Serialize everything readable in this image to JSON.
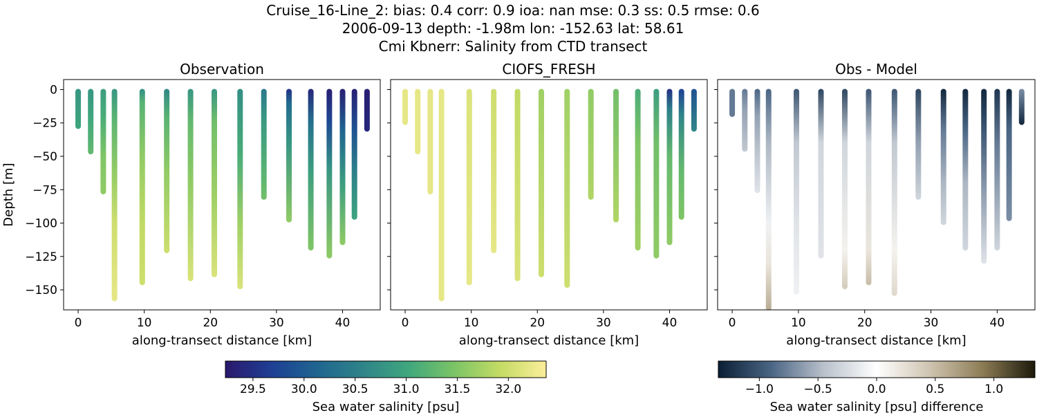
{
  "suptitle": {
    "line1": "Cruise_16-Line_2: bias: 0.4  corr: 0.9  ioa: nan  mse: 0.3  ss: 0.5  rmse: 0.6",
    "line2": "2006-09-13 depth: -1.98m lon: -152.63 lat: 58.61",
    "line3": "Cmi Kbnerr: Salinity from CTD transect"
  },
  "chart_data": [
    {
      "type": "scatter",
      "title": "Observation",
      "xlabel": "along-transect distance [km]",
      "ylabel": "Depth [m]",
      "xlim": [
        -2.2,
        45.7
      ],
      "ylim": [
        -165,
        7.5
      ],
      "xticks": [
        0,
        10,
        20,
        30,
        40
      ],
      "yticks": [
        0,
        -25,
        -50,
        -75,
        -100,
        -125,
        -150
      ],
      "x_tick_labels": [
        "0",
        "10",
        "20",
        "30",
        "40"
      ],
      "y_tick_labels": [
        "0",
        "−25",
        "−50",
        "−75",
        "−100",
        "−125",
        "−150"
      ],
      "colorbar": "salinity",
      "casts": [
        {
          "x": 0.0,
          "bottom": -29,
          "profile": [
            [
              0,
              30.8
            ],
            [
              -29,
              31.0
            ]
          ]
        },
        {
          "x": 1.9,
          "bottom": -48,
          "profile": [
            [
              0,
              30.8
            ],
            [
              -20,
              31.0
            ],
            [
              -48,
              31.3
            ]
          ]
        },
        {
          "x": 3.8,
          "bottom": -78,
          "profile": [
            [
              0,
              30.9
            ],
            [
              -20,
              31.1
            ],
            [
              -50,
              31.5
            ],
            [
              -78,
              31.6
            ]
          ]
        },
        {
          "x": 5.5,
          "bottom": -158,
          "profile": [
            [
              0,
              30.8
            ],
            [
              -20,
              31.2
            ],
            [
              -60,
              31.6
            ],
            [
              -100,
              32.0
            ],
            [
              -158,
              32.2
            ]
          ]
        },
        {
          "x": 9.7,
          "bottom": -146,
          "profile": [
            [
              0,
              30.7
            ],
            [
              -10,
              31.2
            ],
            [
              -50,
              31.6
            ],
            [
              -100,
              31.9
            ],
            [
              -146,
              32.0
            ]
          ]
        },
        {
          "x": 13.4,
          "bottom": -122,
          "profile": [
            [
              0,
              30.6
            ],
            [
              -20,
              31.2
            ],
            [
              -60,
              31.6
            ],
            [
              -122,
              32.0
            ]
          ]
        },
        {
          "x": 17.0,
          "bottom": -143,
          "profile": [
            [
              0,
              30.8
            ],
            [
              -25,
              31.3
            ],
            [
              -70,
              31.6
            ],
            [
              -143,
              32.1
            ]
          ]
        },
        {
          "x": 20.6,
          "bottom": -140,
          "profile": [
            [
              0,
              30.8
            ],
            [
              -25,
              31.4
            ],
            [
              -80,
              31.7
            ],
            [
              -140,
              32.1
            ]
          ]
        },
        {
          "x": 24.5,
          "bottom": -149,
          "profile": [
            [
              0,
              30.7
            ],
            [
              -50,
              31.1
            ],
            [
              -100,
              31.7
            ],
            [
              -149,
              32.1
            ]
          ]
        },
        {
          "x": 28.1,
          "bottom": -82,
          "profile": [
            [
              0,
              30.4
            ],
            [
              -20,
              30.8
            ],
            [
              -60,
              31.2
            ],
            [
              -82,
              31.4
            ]
          ]
        },
        {
          "x": 31.9,
          "bottom": -99,
          "profile": [
            [
              0,
              29.5
            ],
            [
              -10,
              30.2
            ],
            [
              -40,
              30.8
            ],
            [
              -99,
              31.6
            ]
          ]
        },
        {
          "x": 35.2,
          "bottom": -120,
          "profile": [
            [
              0,
              29.4
            ],
            [
              -25,
              30.3
            ],
            [
              -60,
              30.9
            ],
            [
              -120,
              31.5
            ]
          ]
        },
        {
          "x": 38.0,
          "bottom": -126,
          "profile": [
            [
              0,
              29.3
            ],
            [
              -25,
              29.8
            ],
            [
              -60,
              30.8
            ],
            [
              -126,
              31.6
            ]
          ]
        },
        {
          "x": 40.0,
          "bottom": -116,
          "profile": [
            [
              0,
              29.3
            ],
            [
              -30,
              30.1
            ],
            [
              -70,
              30.9
            ],
            [
              -116,
              31.6
            ]
          ]
        },
        {
          "x": 41.8,
          "bottom": -97,
          "profile": [
            [
              0,
              29.3
            ],
            [
              -30,
              29.9
            ],
            [
              -60,
              30.5
            ],
            [
              -97,
              31.0
            ]
          ]
        },
        {
          "x": 43.7,
          "bottom": -31,
          "profile": [
            [
              0,
              29.3
            ],
            [
              -31,
              29.4
            ]
          ]
        }
      ]
    },
    {
      "type": "scatter",
      "title": "CIOFS_FRESH",
      "xlabel": "along-transect distance [km]",
      "xlim": [
        -2.2,
        45.7
      ],
      "ylim": [
        -165,
        7.5
      ],
      "xticks": [
        0,
        10,
        20,
        30,
        40
      ],
      "yticks": [
        0,
        -25,
        -50,
        -75,
        -100,
        -125,
        -150
      ],
      "x_tick_labels": [
        "0",
        "10",
        "20",
        "30",
        "40"
      ],
      "colorbar": "salinity",
      "casts": [
        {
          "x": 0.0,
          "bottom": -26,
          "profile": [
            [
              0,
              32.2
            ],
            [
              -26,
              32.2
            ]
          ]
        },
        {
          "x": 1.9,
          "bottom": -48,
          "profile": [
            [
              0,
              32.2
            ],
            [
              -48,
              32.2
            ]
          ]
        },
        {
          "x": 3.8,
          "bottom": -78,
          "profile": [
            [
              0,
              32.2
            ],
            [
              -78,
              32.2
            ]
          ]
        },
        {
          "x": 5.5,
          "bottom": -158,
          "profile": [
            [
              0,
              32.2
            ],
            [
              -158,
              32.2
            ]
          ]
        },
        {
          "x": 9.7,
          "bottom": -146,
          "profile": [
            [
              0,
              32.1
            ],
            [
              -146,
              32.2
            ]
          ]
        },
        {
          "x": 13.4,
          "bottom": -122,
          "profile": [
            [
              0,
              32.0
            ],
            [
              -122,
              32.2
            ]
          ]
        },
        {
          "x": 17.0,
          "bottom": -143,
          "profile": [
            [
              0,
              31.9
            ],
            [
              -143,
              32.1
            ]
          ]
        },
        {
          "x": 20.6,
          "bottom": -140,
          "profile": [
            [
              0,
              31.7
            ],
            [
              -140,
              32.0
            ]
          ]
        },
        {
          "x": 24.5,
          "bottom": -148,
          "profile": [
            [
              0,
              31.7
            ],
            [
              -148,
              32.0
            ]
          ]
        },
        {
          "x": 28.1,
          "bottom": -82,
          "profile": [
            [
              0,
              31.6
            ],
            [
              -82,
              31.8
            ]
          ]
        },
        {
          "x": 31.9,
          "bottom": -99,
          "profile": [
            [
              0,
              31.4
            ],
            [
              -99,
              31.8
            ]
          ]
        },
        {
          "x": 35.2,
          "bottom": -120,
          "profile": [
            [
              0,
              31.1
            ],
            [
              -40,
              31.5
            ],
            [
              -120,
              31.7
            ]
          ]
        },
        {
          "x": 38.0,
          "bottom": -126,
          "profile": [
            [
              0,
              30.9
            ],
            [
              -40,
              31.4
            ],
            [
              -126,
              31.6
            ]
          ]
        },
        {
          "x": 40.0,
          "bottom": -116,
          "profile": [
            [
              0,
              29.5
            ],
            [
              -15,
              30.5
            ],
            [
              -50,
              31.3
            ],
            [
              -116,
              31.6
            ]
          ]
        },
        {
          "x": 41.8,
          "bottom": -97,
          "profile": [
            [
              0,
              29.7
            ],
            [
              -20,
              30.6
            ],
            [
              -60,
              31.3
            ],
            [
              -97,
              31.5
            ]
          ]
        },
        {
          "x": 43.7,
          "bottom": -31,
          "profile": [
            [
              0,
              29.9
            ],
            [
              -31,
              30.6
            ]
          ]
        }
      ]
    },
    {
      "type": "scatter",
      "title": "Obs - Model",
      "xlabel": "along-transect distance [km]",
      "xlim": [
        -2.2,
        45.7
      ],
      "ylim": [
        -165,
        7.5
      ],
      "xticks": [
        0,
        10,
        20,
        30,
        40
      ],
      "yticks": [
        0,
        -25,
        -50,
        -75,
        -100,
        -125,
        -150
      ],
      "x_tick_labels": [
        "0",
        "10",
        "20",
        "30",
        "40"
      ],
      "colorbar": "difference",
      "casts": [
        {
          "x": 0.0,
          "bottom": -20,
          "profile": [
            [
              0,
              -0.8
            ],
            [
              -20,
              -0.8
            ]
          ]
        },
        {
          "x": 1.9,
          "bottom": -46,
          "profile": [
            [
              0,
              -0.8
            ],
            [
              -15,
              -0.6
            ],
            [
              -46,
              -0.4
            ]
          ]
        },
        {
          "x": 3.8,
          "bottom": -77,
          "profile": [
            [
              0,
              -0.9
            ],
            [
              -20,
              -0.6
            ],
            [
              -50,
              -0.4
            ],
            [
              -77,
              -0.2
            ]
          ]
        },
        {
          "x": 5.5,
          "bottom": -165,
          "profile": [
            [
              0,
              -0.9
            ],
            [
              -40,
              -0.5
            ],
            [
              -100,
              -0.1
            ],
            [
              -130,
              0.2
            ],
            [
              -165,
              0.6
            ]
          ]
        },
        {
          "x": 9.7,
          "bottom": -153,
          "profile": [
            [
              0,
              -1.0
            ],
            [
              -40,
              -0.4
            ],
            [
              -100,
              -0.2
            ],
            [
              -153,
              -0.1
            ]
          ]
        },
        {
          "x": 13.4,
          "bottom": -126,
          "profile": [
            [
              0,
              -1.1
            ],
            [
              -40,
              -0.3
            ],
            [
              -126,
              -0.2
            ]
          ]
        },
        {
          "x": 17.0,
          "bottom": -149,
          "profile": [
            [
              0,
              -1.1
            ],
            [
              -40,
              -0.3
            ],
            [
              -120,
              0.1
            ],
            [
              -149,
              0.4
            ]
          ]
        },
        {
          "x": 20.6,
          "bottom": -146,
          "profile": [
            [
              0,
              -1.0
            ],
            [
              -40,
              -0.3
            ],
            [
              -120,
              0.2
            ],
            [
              -146,
              0.5
            ]
          ]
        },
        {
          "x": 24.5,
          "bottom": -154,
          "profile": [
            [
              0,
              -1.0
            ],
            [
              -40,
              -0.4
            ],
            [
              -120,
              0.1
            ],
            [
              -154,
              0.3
            ]
          ]
        },
        {
          "x": 28.1,
          "bottom": -82,
          "profile": [
            [
              0,
              -1.1
            ],
            [
              -40,
              -0.6
            ],
            [
              -82,
              -0.3
            ]
          ]
        },
        {
          "x": 31.9,
          "bottom": -101,
          "profile": [
            [
              0,
              -1.3
            ],
            [
              -30,
              -0.8
            ],
            [
              -70,
              -0.5
            ],
            [
              -101,
              -0.3
            ]
          ]
        },
        {
          "x": 35.2,
          "bottom": -120,
          "profile": [
            [
              0,
              -1.3
            ],
            [
              -30,
              -0.9
            ],
            [
              -70,
              -0.5
            ],
            [
              -120,
              -0.3
            ]
          ]
        },
        {
          "x": 38.0,
          "bottom": -130,
          "profile": [
            [
              0,
              -1.3
            ],
            [
              -30,
              -1.0
            ],
            [
              -80,
              -0.6
            ],
            [
              -130,
              -0.2
            ]
          ]
        },
        {
          "x": 40.0,
          "bottom": -120,
          "profile": [
            [
              0,
              -1.2
            ],
            [
              -40,
              -0.8
            ],
            [
              -120,
              -0.3
            ]
          ]
        },
        {
          "x": 41.8,
          "bottom": -98,
          "profile": [
            [
              0,
              -1.3
            ],
            [
              -30,
              -0.9
            ],
            [
              -98,
              -0.7
            ]
          ]
        },
        {
          "x": 43.7,
          "bottom": -26,
          "profile": [
            [
              0,
              -0.7
            ],
            [
              -26,
              -1.3
            ]
          ]
        }
      ]
    }
  ],
  "colorbars": {
    "salinity": {
      "label": "Sea water salinity [psu]",
      "range": [
        29.23,
        32.37
      ],
      "ticks": [
        29.5,
        30.0,
        30.5,
        31.0,
        31.5,
        32.0
      ],
      "tick_labels": [
        "29.5",
        "30.0",
        "30.5",
        "31.0",
        "31.5",
        "32.0"
      ],
      "colormap": "haline",
      "stops": [
        "#2a186c",
        "#1e3f94",
        "#1f6590",
        "#2f8489",
        "#3fa77d",
        "#7cc466",
        "#c4db64",
        "#fbee9b"
      ]
    },
    "difference": {
      "label": "Sea water salinity [psu] difference",
      "range": [
        -1.35,
        1.35
      ],
      "ticks": [
        -1.0,
        -0.5,
        0.0,
        0.5,
        1.0
      ],
      "tick_labels": [
        "−1.0",
        "−0.5",
        "0.0",
        "0.5",
        "1.0"
      ],
      "colormap": "diff",
      "stops": [
        "#0a1f34",
        "#4a6584",
        "#b9c1cb",
        "#ffffff",
        "#cfc4b1",
        "#8d7d56",
        "#1c190a"
      ]
    }
  }
}
